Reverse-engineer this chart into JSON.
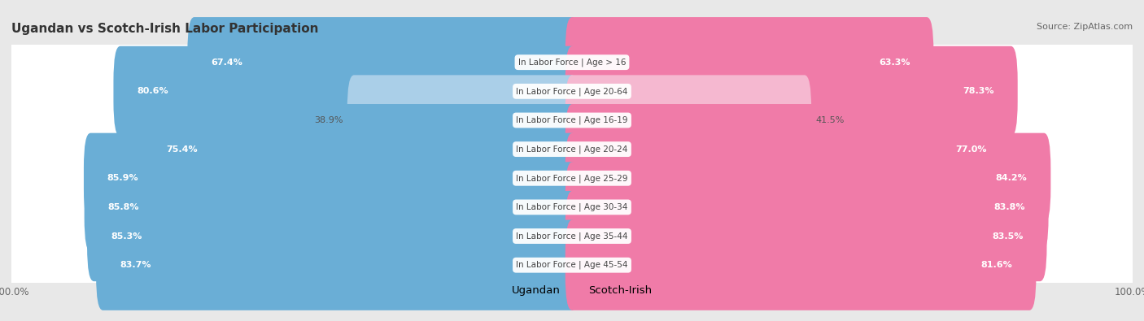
{
  "title": "Ugandan vs Scotch-Irish Labor Participation",
  "source": "Source: ZipAtlas.com",
  "categories": [
    "In Labor Force | Age > 16",
    "In Labor Force | Age 20-64",
    "In Labor Force | Age 16-19",
    "In Labor Force | Age 20-24",
    "In Labor Force | Age 25-29",
    "In Labor Force | Age 30-34",
    "In Labor Force | Age 35-44",
    "In Labor Force | Age 45-54"
  ],
  "ugandan": [
    67.4,
    80.6,
    38.9,
    75.4,
    85.9,
    85.8,
    85.3,
    83.7
  ],
  "scotch_irish": [
    63.3,
    78.3,
    41.5,
    77.0,
    84.2,
    83.8,
    83.5,
    81.6
  ],
  "ugandan_color": "#6AAED6",
  "ugandan_light_color": "#AACFE8",
  "scotch_irish_color": "#F07BA8",
  "scotch_irish_light_color": "#F5B8D0",
  "row_bg_color": "#FFFFFF",
  "outer_bg_color": "#E8E8E8",
  "max_value": 100.0,
  "threshold": 50.0,
  "legend_ugandan": "Ugandan",
  "legend_scotch_irish": "Scotch-Irish"
}
